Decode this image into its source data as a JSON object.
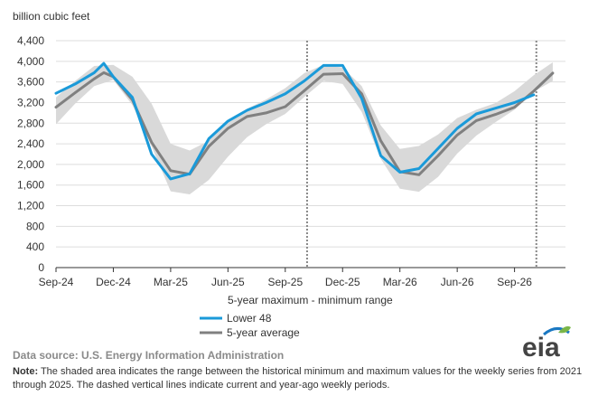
{
  "chart_data": {
    "type": "line",
    "unit_label": "billion cubic feet",
    "y_ticks": [
      "0",
      "400",
      "800",
      "1,200",
      "1,600",
      "2,000",
      "2,400",
      "2,800",
      "3,200",
      "3,600",
      "4,000",
      "4,400"
    ],
    "ylim": [
      0,
      4400
    ],
    "x_ticks": [
      "Sep-24",
      "Dec-24",
      "Mar-25",
      "Jun-25",
      "Sep-25",
      "Dec-25",
      "Mar-26",
      "Jun-26",
      "Sep-26"
    ],
    "grid": true,
    "legend": {
      "range_label": "5-year maximum - minimum range",
      "entries": [
        "Lower 48",
        "5-year average"
      ]
    },
    "current_week_markers": [
      "Oct-25",
      "Oct-26"
    ],
    "range_band": {
      "name": "5-year maximum - minimum range",
      "x": [
        "Sep-24",
        "Oct-24",
        "Nov-24",
        "Dec-24",
        "Jan-25",
        "Feb-25",
        "Mar-25",
        "Apr-25",
        "May-25",
        "Jun-25",
        "Jul-25",
        "Aug-25",
        "Sep-25",
        "Oct-25",
        "Nov-25",
        "Dec-25",
        "Jan-26",
        "Feb-26",
        "Mar-26",
        "Apr-26",
        "May-26",
        "Jun-26",
        "Jul-26",
        "Aug-26",
        "Sep-26",
        "Oct-26",
        "Nov-26"
      ],
      "max": [
        3300,
        3620,
        3910,
        3930,
        3700,
        3180,
        2400,
        2270,
        2460,
        2820,
        3080,
        3260,
        3480,
        3770,
        3930,
        3880,
        3520,
        2760,
        2300,
        2360,
        2580,
        2900,
        3060,
        3190,
        3420,
        3730,
        3980
      ],
      "min": [
        2780,
        3180,
        3520,
        3640,
        3150,
        2350,
        1480,
        1420,
        1700,
        2150,
        2530,
        2780,
        2980,
        3310,
        3620,
        3560,
        3020,
        2110,
        1530,
        1470,
        1760,
        2210,
        2560,
        2820,
        3060,
        3410,
        3620
      ]
    },
    "series": [
      {
        "name": "Lower 48",
        "color": "#1a9ad9",
        "x": [
          "Sep-24",
          "Oct-24",
          "Nov-24",
          "Nov-24",
          "Dec-24",
          "Jan-25",
          "Feb-25",
          "Mar-25",
          "Apr-25",
          "May-25",
          "Jun-25",
          "Jul-25",
          "Aug-25",
          "Sep-25",
          "Oct-25",
          "Nov-25",
          "Dec-25",
          "Jan-26",
          "Feb-26",
          "Mar-26",
          "Apr-26",
          "May-26",
          "Jun-26",
          "Jul-26",
          "Aug-26",
          "Sep-26",
          "Oct-26"
        ],
        "values": [
          3380,
          3560,
          3780,
          3960,
          3700,
          3300,
          2200,
          1720,
          1820,
          2500,
          2840,
          3050,
          3200,
          3370,
          3620,
          3920,
          3920,
          3280,
          2170,
          1850,
          1920,
          2310,
          2700,
          2980,
          3090,
          3200,
          3350
        ]
      },
      {
        "name": "5-year average",
        "color": "#808080",
        "x": [
          "Sep-24",
          "Oct-24",
          "Nov-24",
          "Nov-24",
          "Dec-24",
          "Jan-25",
          "Feb-25",
          "Mar-25",
          "Apr-25",
          "May-25",
          "Jun-25",
          "Jul-25",
          "Aug-25",
          "Sep-25",
          "Oct-25",
          "Nov-25",
          "Dec-25",
          "Jan-26",
          "Feb-26",
          "Mar-26",
          "Apr-26",
          "May-26",
          "Jun-26",
          "Jul-26",
          "Aug-26",
          "Sep-26",
          "Oct-26",
          "Nov-26"
        ],
        "values": [
          3110,
          3390,
          3660,
          3780,
          3700,
          3250,
          2430,
          1880,
          1810,
          2350,
          2700,
          2930,
          3000,
          3120,
          3430,
          3750,
          3760,
          3370,
          2460,
          1860,
          1800,
          2170,
          2570,
          2850,
          2970,
          3110,
          3420,
          3770
        ]
      }
    ]
  },
  "footer": {
    "source": "Data source:  U.S. Energy Information Administration",
    "note_label": "Note:",
    "note_text": " The shaded area indicates the range between the historical minimum and maximum values for the weekly series from 2021 through 2025. The dashed vertical lines indicate current and year-ago weekly periods.",
    "logo_text": "eia"
  },
  "colors": {
    "lower48": "#1a9ad9",
    "average": "#808080",
    "band": "#d9d9d9",
    "grid": "#dddddd",
    "logo_blue": "#1a78c2",
    "logo_green": "#7ab648"
  }
}
